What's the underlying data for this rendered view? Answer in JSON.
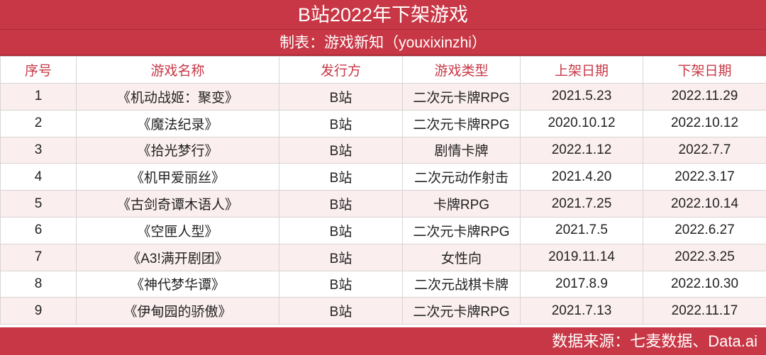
{
  "title": "B站2022年下架游戏",
  "subtitle": "制表：游戏新知（youxixinzhi）",
  "columns": [
    "序号",
    "游戏名称",
    "发行方",
    "游戏类型",
    "上架日期",
    "下架日期"
  ],
  "rows": [
    [
      "1",
      "《机动战姬：聚变》",
      "B站",
      "二次元卡牌RPG",
      "2021.5.23",
      "2022.11.29"
    ],
    [
      "2",
      "《魔法纪录》",
      "B站",
      "二次元卡牌RPG",
      "2020.10.12",
      "2022.10.12"
    ],
    [
      "3",
      "《拾光梦行》",
      "B站",
      "剧情卡牌",
      "2022.1.12",
      "2022.7.7"
    ],
    [
      "4",
      "《机甲爱丽丝》",
      "B站",
      "二次元动作射击",
      "2021.4.20",
      "2022.3.17"
    ],
    [
      "5",
      "《古剑奇谭木语人》",
      "B站",
      "卡牌RPG",
      "2021.7.25",
      "2022.10.14"
    ],
    [
      "6",
      "《空匣人型》",
      "B站",
      "二次元卡牌RPG",
      "2021.7.5",
      "2022.6.27"
    ],
    [
      "7",
      "《A3!满开剧团》",
      "B站",
      "女性向",
      "2019.11.14",
      "2022.3.25"
    ],
    [
      "8",
      "《神代梦华谭》",
      "B站",
      "二次元战棋卡牌",
      "2017.8.9",
      "2022.10.30"
    ],
    [
      "9",
      "《伊甸园的骄傲》",
      "B站",
      "二次元卡牌RPG",
      "2021.7.13",
      "2022.11.17"
    ]
  ],
  "footer": "数据来源：七麦数据、Data.ai",
  "colors": {
    "accent": "#c83745",
    "alt_row": "#fbeeee"
  }
}
